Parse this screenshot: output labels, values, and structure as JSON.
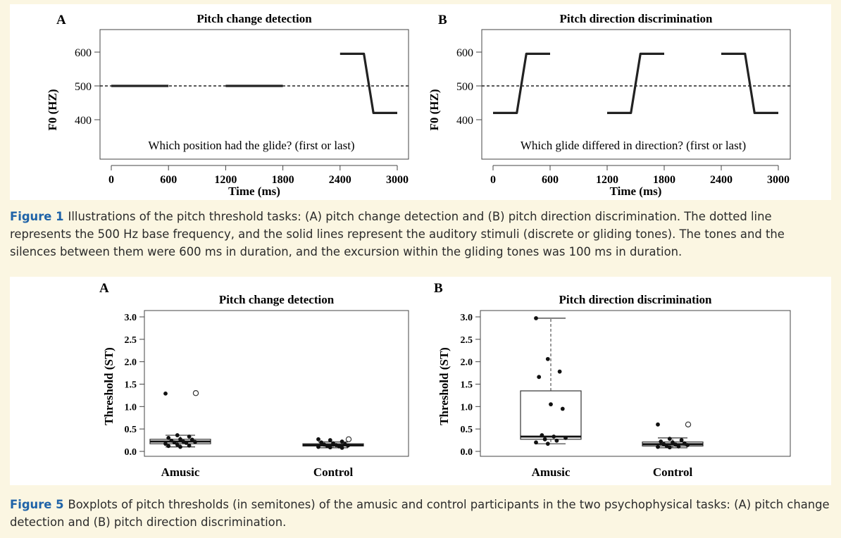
{
  "figure1": {
    "caption_label": "Figure 1",
    "caption_text": "Illustrations of the pitch threshold tasks: (A) pitch change detection and (B) pitch direction discrimination. The dotted line represents the 500 Hz base frequency, and the solid lines represent the auditory stimuli (discrete or gliding tones). The tones and the silences between them were 600 ms in duration, and the excursion within the gliding tones was 100 ms in duration.",
    "chart_data": [
      {
        "type": "line",
        "panel_letter": "A",
        "title": "Pitch change detection",
        "xlabel": "Time (ms)",
        "ylabel": "F0 (HZ)",
        "xlim": [
          0,
          3000
        ],
        "ylim": [
          400,
          600
        ],
        "xticks": [
          "0",
          "600",
          "1200",
          "1800",
          "2400",
          "3000"
        ],
        "yticks": [
          "400",
          "500",
          "600"
        ],
        "baseline": 500,
        "annotation": "Which position had the glide? (first or last)",
        "segments": [
          {
            "x": [
              0,
              600
            ],
            "y": [
              500,
              500
            ]
          },
          {
            "x": [
              1200,
              1800
            ],
            "y": [
              500,
              500
            ]
          },
          {
            "x": [
              2400,
              2650,
              2750,
              3000
            ],
            "y": [
              595,
              595,
              420,
              420
            ]
          }
        ]
      },
      {
        "type": "line",
        "panel_letter": "B",
        "title": "Pitch direction discrimination",
        "xlabel": "Time (ms)",
        "ylabel": "F0 (HZ)",
        "xlim": [
          0,
          3000
        ],
        "ylim": [
          400,
          600
        ],
        "xticks": [
          "0",
          "600",
          "1200",
          "1800",
          "2400",
          "3000"
        ],
        "yticks": [
          "400",
          "500",
          "600"
        ],
        "baseline": 500,
        "annotation": "Which glide differed in direction? (first or last)",
        "segments": [
          {
            "x": [
              0,
              250,
              350,
              600
            ],
            "y": [
              420,
              420,
              595,
              595
            ]
          },
          {
            "x": [
              1200,
              1450,
              1550,
              1800
            ],
            "y": [
              420,
              420,
              595,
              595
            ]
          },
          {
            "x": [
              2400,
              2650,
              2750,
              3000
            ],
            "y": [
              595,
              595,
              420,
              420
            ]
          }
        ]
      }
    ]
  },
  "figure5": {
    "caption_label": "Figure 5",
    "caption_text": "Boxplots of pitch thresholds (in semitones) of the amusic and control participants in the two psychophysical tasks: (A) pitch change detection and (B) pitch direction discrimination.",
    "chart_data": [
      {
        "type": "boxplot",
        "panel_letter": "A",
        "title": "Pitch change detection",
        "ylabel": "Threshold (ST)",
        "ylim": [
          0,
          3.0
        ],
        "yticks": [
          "0.0",
          "0.5",
          "1.0",
          "1.5",
          "2.0",
          "2.5",
          "3.0"
        ],
        "categories": [
          "Amusic",
          "Control"
        ],
        "boxes": [
          {
            "q1": 0.17,
            "median": 0.22,
            "q3": 0.27,
            "whisker_low": 0.1,
            "whisker_high": 0.36,
            "outliers": [
              1.3
            ],
            "points": [
              1.29,
              0.36,
              0.33,
              0.3,
              0.27,
              0.26,
              0.24,
              0.22,
              0.21,
              0.2,
              0.19,
              0.17,
              0.15,
              0.13,
              0.12,
              0.1
            ]
          },
          {
            "q1": 0.12,
            "median": 0.14,
            "q3": 0.17,
            "whisker_low": 0.08,
            "whisker_high": 0.21,
            "outliers": [
              0.27
            ],
            "points": [
              0.27,
              0.25,
              0.22,
              0.2,
              0.18,
              0.16,
              0.15,
              0.14,
              0.13,
              0.12,
              0.11,
              0.1,
              0.09,
              0.08
            ]
          }
        ]
      },
      {
        "type": "boxplot",
        "panel_letter": "B",
        "title": "Pitch direction discrimination",
        "ylabel": "Threshold (ST)",
        "ylim": [
          0,
          3.0
        ],
        "yticks": [
          "0.0",
          "0.5",
          "1.0",
          "1.5",
          "2.0",
          "2.5",
          "3.0"
        ],
        "categories": [
          "Amusic",
          "Control"
        ],
        "boxes": [
          {
            "q1": 0.27,
            "median": 0.33,
            "q3": 1.35,
            "whisker_low": 0.17,
            "whisker_high": 2.97,
            "outliers": [],
            "points": [
              2.97,
              2.06,
              1.78,
              1.66,
              1.05,
              0.95,
              0.36,
              0.33,
              0.3,
              0.27,
              0.24,
              0.2,
              0.17
            ]
          },
          {
            "q1": 0.12,
            "median": 0.16,
            "q3": 0.21,
            "whisker_low": 0.08,
            "whisker_high": 0.3,
            "outliers": [
              0.6
            ],
            "points": [
              0.6,
              0.28,
              0.25,
              0.22,
              0.2,
              0.18,
              0.16,
              0.15,
              0.14,
              0.12,
              0.11,
              0.1,
              0.09
            ]
          }
        ]
      }
    ]
  }
}
